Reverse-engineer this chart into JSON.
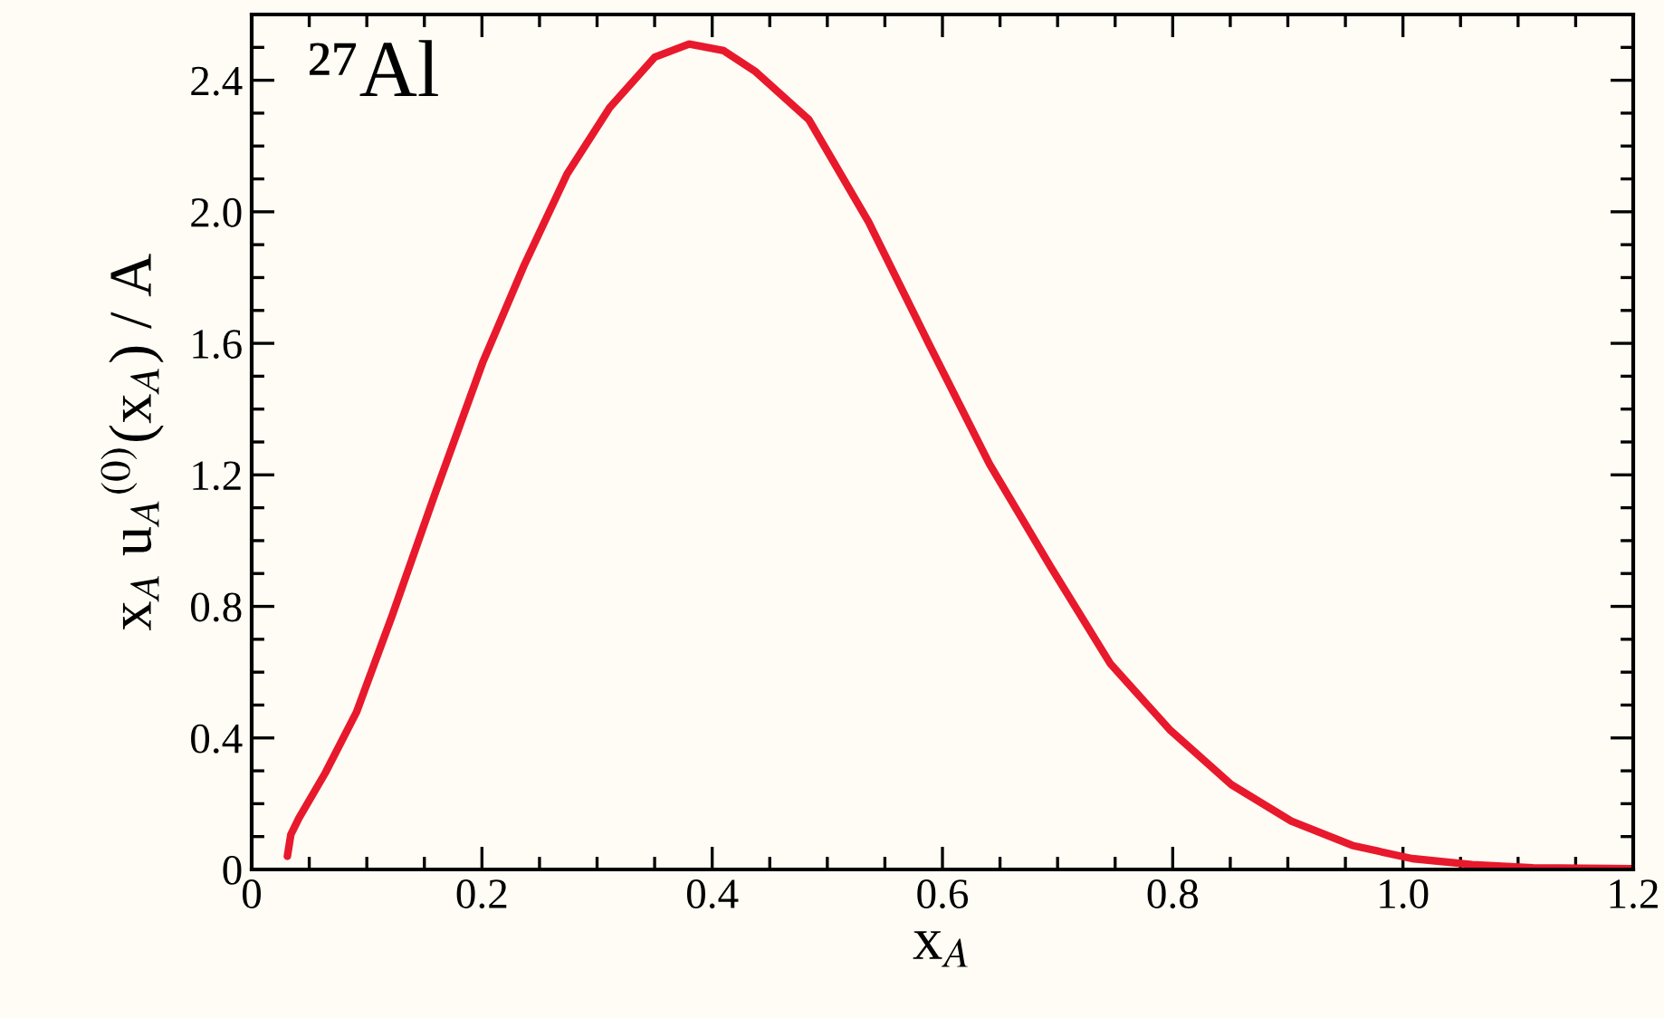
{
  "chart_data": {
    "type": "line",
    "xlabel": "x$_{A}$",
    "ylabel": "x$_{A}$ u$_{A}$$^{(0)}$(x$_{A}$) / A",
    "annotations": [
      "²⁷Al"
    ],
    "series": [
      {
        "color": "#e8192c",
        "x": [
          0.031,
          0.034,
          0.041,
          0.064,
          0.091,
          0.122,
          0.159,
          0.201,
          0.237,
          0.274,
          0.311,
          0.35,
          0.38,
          0.41,
          0.437,
          0.484,
          0.536,
          0.588,
          0.641,
          0.694,
          0.746,
          0.798,
          0.851,
          0.903,
          0.956,
          1.008,
          1.06,
          1.113,
          1.2
        ],
        "values": [
          0.04,
          0.106,
          0.156,
          0.294,
          0.478,
          0.772,
          1.14,
          1.545,
          1.84,
          2.115,
          2.317,
          2.47,
          2.51,
          2.49,
          2.428,
          2.28,
          1.968,
          1.6,
          1.232,
          0.92,
          0.625,
          0.423,
          0.258,
          0.147,
          0.073,
          0.033,
          0.015,
          0.005,
          0.002
        ]
      }
    ],
    "xlim": [
      0,
      1.2
    ],
    "ylim": [
      0,
      2.6
    ],
    "xticks": [
      0,
      0.2,
      0.4,
      0.6,
      0.8,
      {
        "value": 1.0,
        "label": "1.0"
      },
      1.2
    ],
    "yticks": [
      0,
      0.4,
      0.8,
      1.2,
      1.6,
      {
        "value": 2.0,
        "label": "2.0"
      },
      2.4
    ],
    "grid": false,
    "marker": "none",
    "line_style": "solid"
  }
}
